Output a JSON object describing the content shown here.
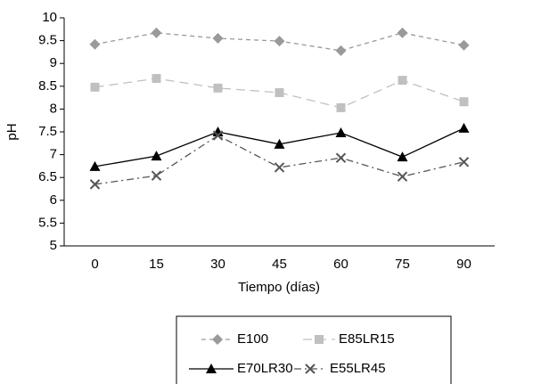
{
  "chart_data": {
    "type": "line",
    "x_label": "Tiempo (días)",
    "y_label": "pH",
    "categories": [
      "0",
      "15",
      "30",
      "45",
      "60",
      "75",
      "90"
    ],
    "ylim": [
      5,
      10
    ],
    "yticks": [
      5,
      5.5,
      6,
      6.5,
      7,
      7.5,
      8,
      8.5,
      9,
      9.5,
      10
    ],
    "grid": false,
    "legend": "bottom",
    "series": [
      {
        "name": "E100",
        "color": "#9a9a9a",
        "marker": "diamond",
        "line_style": "dashed",
        "values": [
          9.42,
          9.67,
          9.55,
          9.49,
          9.28,
          9.67,
          9.4
        ]
      },
      {
        "name": "E85LR15",
        "color": "#c0c0c0",
        "marker": "square",
        "line_style": "longdash",
        "values": [
          8.48,
          8.67,
          8.46,
          8.36,
          8.03,
          8.63,
          8.16
        ]
      },
      {
        "name": "E70LR30",
        "color": "#000000",
        "marker": "triangle",
        "line_style": "solid",
        "values": [
          6.74,
          6.97,
          7.5,
          7.23,
          7.48,
          6.95,
          7.58
        ]
      },
      {
        "name": "E55LR45",
        "color": "#555555",
        "marker": "x",
        "line_style": "dashdot",
        "values": [
          6.35,
          6.54,
          7.42,
          6.72,
          6.93,
          6.52,
          6.84
        ]
      }
    ]
  }
}
